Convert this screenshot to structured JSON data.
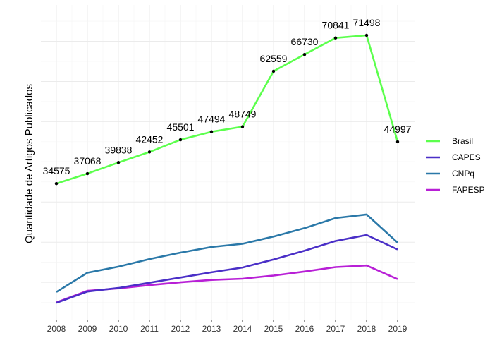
{
  "chart_data": {
    "type": "line",
    "title": "",
    "xlabel": "",
    "ylabel": "Quantidade de Artigos Publicados",
    "x": [
      2008,
      2009,
      2010,
      2011,
      2012,
      2013,
      2014,
      2015,
      2016,
      2017,
      2018,
      2019
    ],
    "ylim": [
      3000,
      76000
    ],
    "grid": true,
    "legend_position": "right",
    "series": [
      {
        "name": "Brasil",
        "color": "#5CFF4D",
        "labeled": true,
        "values": [
          34575,
          37068,
          39838,
          42452,
          45501,
          47494,
          48749,
          62559,
          66730,
          70841,
          71498,
          44997
        ]
      },
      {
        "name": "CAPES",
        "color": "#4A2FC7",
        "labeled": false,
        "values": [
          4900,
          7700,
          8600,
          9900,
          11200,
          12500,
          13700,
          15700,
          17900,
          20300,
          21800,
          18200
        ]
      },
      {
        "name": "CNPq",
        "color": "#2A78A8",
        "labeled": false,
        "values": [
          7600,
          12400,
          13900,
          15800,
          17400,
          18800,
          19600,
          21400,
          23500,
          26000,
          26900,
          19900
        ]
      },
      {
        "name": "FAPESP",
        "color": "#B81FD6",
        "labeled": false,
        "values": [
          5000,
          7900,
          8500,
          9300,
          10000,
          10600,
          10900,
          11700,
          12700,
          13800,
          14200,
          10800
        ]
      }
    ]
  }
}
